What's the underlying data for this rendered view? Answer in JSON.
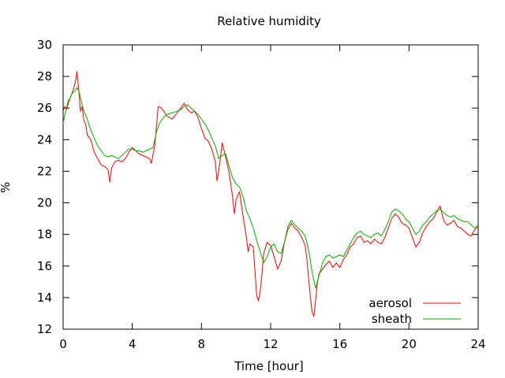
{
  "chart_data": {
    "type": "line",
    "title": "Relative humidity",
    "xlabel": "Time [hour]",
    "ylabel": "%",
    "xlim": [
      0,
      24
    ],
    "ylim": [
      12,
      30
    ],
    "x_ticks": [
      0,
      4,
      8,
      12,
      16,
      20,
      24
    ],
    "y_ticks": [
      12,
      14,
      16,
      18,
      20,
      22,
      24,
      26,
      28,
      30
    ],
    "grid": false,
    "legend_position": "bottom-right",
    "series": [
      {
        "name": "aerosol",
        "color": "#ff0000",
        "points": [
          [
            0.0,
            25.8
          ],
          [
            0.1,
            26.1
          ],
          [
            0.2,
            25.9
          ],
          [
            0.3,
            26.3
          ],
          [
            0.4,
            26.6
          ],
          [
            0.5,
            26.9
          ],
          [
            0.6,
            27.2
          ],
          [
            0.7,
            27.6
          ],
          [
            0.8,
            28.3
          ],
          [
            0.9,
            27.2
          ],
          [
            1.0,
            25.8
          ],
          [
            1.1,
            26.1
          ],
          [
            1.2,
            25.2
          ],
          [
            1.3,
            25.0
          ],
          [
            1.4,
            24.3
          ],
          [
            1.6,
            24.0
          ],
          [
            1.8,
            23.2
          ],
          [
            2.0,
            22.8
          ],
          [
            2.2,
            22.4
          ],
          [
            2.4,
            22.3
          ],
          [
            2.6,
            22.1
          ],
          [
            2.7,
            21.3
          ],
          [
            2.8,
            22.2
          ],
          [
            3.0,
            22.6
          ],
          [
            3.2,
            22.7
          ],
          [
            3.4,
            22.6
          ],
          [
            3.6,
            22.8
          ],
          [
            3.8,
            23.2
          ],
          [
            4.0,
            23.5
          ],
          [
            4.2,
            23.3
          ],
          [
            4.4,
            23.1
          ],
          [
            4.6,
            23.0
          ],
          [
            4.8,
            22.9
          ],
          [
            5.0,
            22.8
          ],
          [
            5.1,
            22.5
          ],
          [
            5.3,
            23.6
          ],
          [
            5.5,
            26.1
          ],
          [
            5.7,
            26.0
          ],
          [
            6.0,
            25.5
          ],
          [
            6.3,
            25.3
          ],
          [
            6.6,
            25.7
          ],
          [
            6.8,
            26.0
          ],
          [
            7.0,
            26.3
          ],
          [
            7.2,
            25.9
          ],
          [
            7.4,
            25.7
          ],
          [
            7.6,
            25.8
          ],
          [
            7.8,
            25.4
          ],
          [
            8.0,
            24.7
          ],
          [
            8.2,
            24.1
          ],
          [
            8.4,
            23.9
          ],
          [
            8.6,
            23.4
          ],
          [
            8.8,
            22.6
          ],
          [
            8.9,
            21.4
          ],
          [
            9.0,
            22.0
          ],
          [
            9.2,
            23.8
          ],
          [
            9.4,
            22.9
          ],
          [
            9.6,
            21.9
          ],
          [
            9.8,
            20.4
          ],
          [
            9.9,
            19.3
          ],
          [
            10.0,
            20.2
          ],
          [
            10.2,
            20.7
          ],
          [
            10.4,
            19.2
          ],
          [
            10.6,
            17.8
          ],
          [
            10.7,
            16.9
          ],
          [
            10.8,
            17.4
          ],
          [
            11.0,
            17.2
          ],
          [
            11.1,
            15.6
          ],
          [
            11.2,
            14.1
          ],
          [
            11.3,
            13.8
          ],
          [
            11.4,
            14.4
          ],
          [
            11.5,
            15.5
          ],
          [
            11.6,
            16.8
          ],
          [
            11.8,
            17.5
          ],
          [
            12.0,
            17.3
          ],
          [
            12.2,
            16.6
          ],
          [
            12.4,
            15.8
          ],
          [
            12.6,
            16.3
          ],
          [
            12.8,
            17.5
          ],
          [
            13.0,
            18.3
          ],
          [
            13.2,
            18.7
          ],
          [
            13.4,
            18.4
          ],
          [
            13.6,
            18.2
          ],
          [
            13.8,
            17.8
          ],
          [
            14.0,
            17.3
          ],
          [
            14.1,
            16.4
          ],
          [
            14.2,
            15.2
          ],
          [
            14.3,
            14.0
          ],
          [
            14.4,
            13.1
          ],
          [
            14.5,
            12.8
          ],
          [
            14.6,
            13.8
          ],
          [
            14.7,
            14.9
          ],
          [
            14.8,
            15.5
          ],
          [
            15.0,
            15.8
          ],
          [
            15.2,
            16.1
          ],
          [
            15.4,
            16.3
          ],
          [
            15.6,
            15.9
          ],
          [
            15.8,
            16.2
          ],
          [
            16.0,
            15.9
          ],
          [
            16.2,
            16.4
          ],
          [
            16.4,
            16.7
          ],
          [
            16.6,
            17.2
          ],
          [
            16.8,
            17.4
          ],
          [
            17.0,
            17.8
          ],
          [
            17.2,
            17.9
          ],
          [
            17.4,
            17.5
          ],
          [
            17.6,
            17.6
          ],
          [
            17.8,
            17.4
          ],
          [
            18.0,
            17.7
          ],
          [
            18.2,
            17.5
          ],
          [
            18.4,
            17.4
          ],
          [
            18.6,
            17.8
          ],
          [
            18.8,
            18.4
          ],
          [
            19.0,
            19.0
          ],
          [
            19.2,
            19.3
          ],
          [
            19.4,
            19.1
          ],
          [
            19.6,
            18.7
          ],
          [
            19.8,
            18.6
          ],
          [
            20.0,
            18.4
          ],
          [
            20.2,
            17.8
          ],
          [
            20.4,
            17.2
          ],
          [
            20.6,
            17.5
          ],
          [
            20.8,
            18.1
          ],
          [
            21.0,
            18.5
          ],
          [
            21.2,
            18.8
          ],
          [
            21.4,
            19.0
          ],
          [
            21.6,
            19.4
          ],
          [
            21.8,
            19.8
          ],
          [
            22.0,
            18.9
          ],
          [
            22.2,
            18.6
          ],
          [
            22.4,
            18.7
          ],
          [
            22.6,
            18.9
          ],
          [
            22.8,
            18.5
          ],
          [
            23.0,
            18.4
          ],
          [
            23.2,
            18.2
          ],
          [
            23.4,
            18.0
          ],
          [
            23.6,
            17.9
          ],
          [
            23.8,
            18.3
          ],
          [
            24.0,
            18.5
          ]
        ]
      },
      {
        "name": "sheath",
        "color": "#00b000",
        "points": [
          [
            0.0,
            25.0
          ],
          [
            0.1,
            25.6
          ],
          [
            0.2,
            26.0
          ],
          [
            0.3,
            26.5
          ],
          [
            0.4,
            26.6
          ],
          [
            0.5,
            26.9
          ],
          [
            0.6,
            27.0
          ],
          [
            0.7,
            27.1
          ],
          [
            0.8,
            27.3
          ],
          [
            0.9,
            27.1
          ],
          [
            1.0,
            26.7
          ],
          [
            1.1,
            26.2
          ],
          [
            1.2,
            25.8
          ],
          [
            1.4,
            25.3
          ],
          [
            1.6,
            24.6
          ],
          [
            1.8,
            24.1
          ],
          [
            2.0,
            23.6
          ],
          [
            2.2,
            23.3
          ],
          [
            2.4,
            23.0
          ],
          [
            2.6,
            22.9
          ],
          [
            2.8,
            23.0
          ],
          [
            3.0,
            22.9
          ],
          [
            3.2,
            22.8
          ],
          [
            3.4,
            23.0
          ],
          [
            3.6,
            23.2
          ],
          [
            3.8,
            23.4
          ],
          [
            4.0,
            23.4
          ],
          [
            4.2,
            23.3
          ],
          [
            4.4,
            23.3
          ],
          [
            4.6,
            23.2
          ],
          [
            4.8,
            23.3
          ],
          [
            5.0,
            23.4
          ],
          [
            5.2,
            23.5
          ],
          [
            5.4,
            24.5
          ],
          [
            5.6,
            25.1
          ],
          [
            5.8,
            25.4
          ],
          [
            6.0,
            25.6
          ],
          [
            6.3,
            25.7
          ],
          [
            6.6,
            25.8
          ],
          [
            6.8,
            25.9
          ],
          [
            7.0,
            26.1
          ],
          [
            7.2,
            26.2
          ],
          [
            7.4,
            26.0
          ],
          [
            7.6,
            25.8
          ],
          [
            7.8,
            25.6
          ],
          [
            8.0,
            25.3
          ],
          [
            8.2,
            25.0
          ],
          [
            8.4,
            24.6
          ],
          [
            8.6,
            24.1
          ],
          [
            8.8,
            23.6
          ],
          [
            9.0,
            22.8
          ],
          [
            9.2,
            23.0
          ],
          [
            9.4,
            23.1
          ],
          [
            9.6,
            22.3
          ],
          [
            9.8,
            21.6
          ],
          [
            10.0,
            21.2
          ],
          [
            10.2,
            21.0
          ],
          [
            10.4,
            20.4
          ],
          [
            10.6,
            19.5
          ],
          [
            10.8,
            19.0
          ],
          [
            11.0,
            18.4
          ],
          [
            11.2,
            17.6
          ],
          [
            11.4,
            16.9
          ],
          [
            11.6,
            16.2
          ],
          [
            11.8,
            16.6
          ],
          [
            12.0,
            17.2
          ],
          [
            12.2,
            17.4
          ],
          [
            12.4,
            16.9
          ],
          [
            12.6,
            16.8
          ],
          [
            12.8,
            17.5
          ],
          [
            13.0,
            18.5
          ],
          [
            13.2,
            18.9
          ],
          [
            13.4,
            18.6
          ],
          [
            13.6,
            18.4
          ],
          [
            13.8,
            18.2
          ],
          [
            14.0,
            17.9
          ],
          [
            14.2,
            17.0
          ],
          [
            14.4,
            15.6
          ],
          [
            14.6,
            14.6
          ],
          [
            14.8,
            15.4
          ],
          [
            15.0,
            16.2
          ],
          [
            15.2,
            16.6
          ],
          [
            15.4,
            16.7
          ],
          [
            15.6,
            16.5
          ],
          [
            15.8,
            16.6
          ],
          [
            16.0,
            16.7
          ],
          [
            16.2,
            16.6
          ],
          [
            16.4,
            17.0
          ],
          [
            16.6,
            17.4
          ],
          [
            16.8,
            17.8
          ],
          [
            17.0,
            18.1
          ],
          [
            17.2,
            18.2
          ],
          [
            17.4,
            18.0
          ],
          [
            17.6,
            17.9
          ],
          [
            17.8,
            17.8
          ],
          [
            18.0,
            18.0
          ],
          [
            18.2,
            18.1
          ],
          [
            18.4,
            17.9
          ],
          [
            18.6,
            18.3
          ],
          [
            18.8,
            18.8
          ],
          [
            19.0,
            19.4
          ],
          [
            19.2,
            19.6
          ],
          [
            19.4,
            19.5
          ],
          [
            19.6,
            19.3
          ],
          [
            19.8,
            19.0
          ],
          [
            20.0,
            18.8
          ],
          [
            20.2,
            18.4
          ],
          [
            20.4,
            18.0
          ],
          [
            20.6,
            18.2
          ],
          [
            20.8,
            18.6
          ],
          [
            21.0,
            18.8
          ],
          [
            21.2,
            19.1
          ],
          [
            21.4,
            19.3
          ],
          [
            21.6,
            19.5
          ],
          [
            21.8,
            19.6
          ],
          [
            22.0,
            19.4
          ],
          [
            22.2,
            19.2
          ],
          [
            22.4,
            19.1
          ],
          [
            22.6,
            19.2
          ],
          [
            22.8,
            19.0
          ],
          [
            23.0,
            18.9
          ],
          [
            23.2,
            18.8
          ],
          [
            23.4,
            18.8
          ],
          [
            23.6,
            18.6
          ],
          [
            23.8,
            18.4
          ],
          [
            24.0,
            18.6
          ]
        ]
      }
    ]
  }
}
